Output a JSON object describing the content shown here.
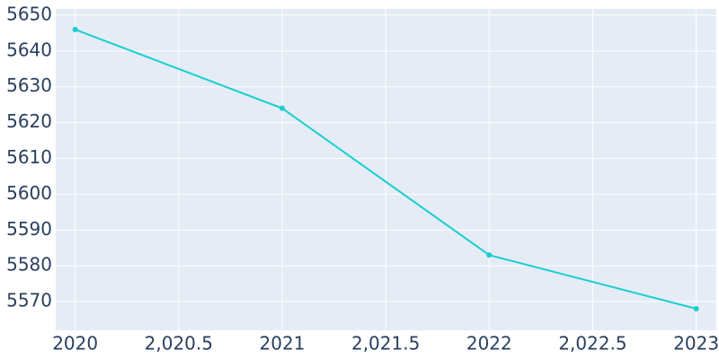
{
  "chart_data": {
    "type": "line",
    "x": [
      2020,
      2021,
      2022,
      2023
    ],
    "series": [
      {
        "color": "#17cfcf",
        "values": [
          5646,
          5624,
          5583,
          5568
        ]
      }
    ],
    "xlim": [
      2019.906,
      2023.097
    ],
    "xticks": [
      2020,
      {
        "value": 2020.5,
        "label": "2,020.5"
      },
      2021,
      {
        "value": 2021.5,
        "label": "2,021.5"
      },
      2022,
      {
        "value": 2022.5,
        "label": "2,022.5"
      },
      2023
    ],
    "ylim": [
      5561.98,
      5651.75
    ],
    "yticks": [
      5570,
      5580,
      5590,
      5600,
      5610,
      5620,
      5630,
      5640,
      5650
    ],
    "grid": true
  }
}
